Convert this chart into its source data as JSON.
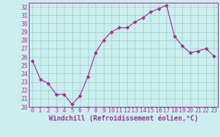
{
  "x": [
    0,
    1,
    2,
    3,
    4,
    5,
    6,
    7,
    8,
    9,
    10,
    11,
    12,
    13,
    14,
    15,
    16,
    17,
    18,
    19,
    20,
    21,
    22,
    23
  ],
  "y": [
    25.5,
    23.3,
    22.8,
    21.5,
    21.5,
    20.3,
    21.3,
    23.6,
    26.5,
    28.0,
    29.0,
    29.5,
    29.5,
    30.2,
    30.7,
    31.4,
    31.8,
    32.2,
    28.5,
    27.3,
    26.5,
    26.7,
    27.0,
    26.1
  ],
  "line_color": "#993399",
  "marker": "D",
  "marker_size": 2.5,
  "bg_color": "#cceeee",
  "grid_color": "#99cccc",
  "xlabel": "Windchill (Refroidissement éolien,°C)",
  "xlim": [
    -0.5,
    23.5
  ],
  "ylim": [
    20,
    32.5
  ],
  "yticks": [
    20,
    21,
    22,
    23,
    24,
    25,
    26,
    27,
    28,
    29,
    30,
    31,
    32
  ],
  "xticks": [
    0,
    1,
    2,
    3,
    4,
    5,
    6,
    7,
    8,
    9,
    10,
    11,
    12,
    13,
    14,
    15,
    16,
    17,
    18,
    19,
    20,
    21,
    22,
    23
  ],
  "tick_fontsize": 6,
  "xlabel_fontsize": 7,
  "spine_color": "#993399",
  "title_bg": "#993399"
}
